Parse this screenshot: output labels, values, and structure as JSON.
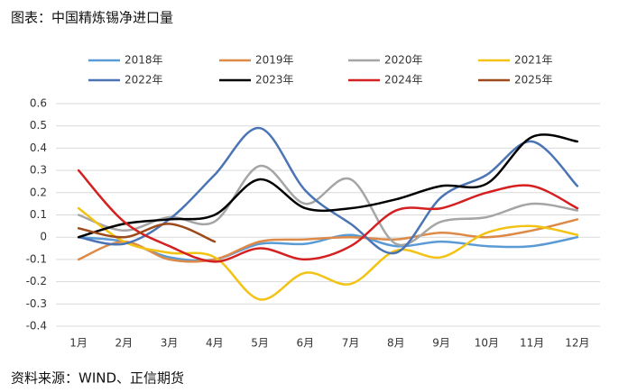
{
  "chart_data": {
    "type": "line",
    "title": "图表：中国精炼锡净进口量",
    "source": "资料来源：WIND、正信期货",
    "categories": [
      "1月",
      "2月",
      "3月",
      "4月",
      "5月",
      "6月",
      "7月",
      "8月",
      "9月",
      "10月",
      "11月",
      "12月"
    ],
    "ylim": [
      -0.4,
      0.6
    ],
    "yticks": [
      0.6,
      0.5,
      0.4,
      0.3,
      0.2,
      0.1,
      0,
      -0.1,
      -0.2,
      -0.3,
      -0.4
    ],
    "grid": true,
    "smooth": true,
    "legend": "top",
    "series": [
      {
        "name": "2018年",
        "color": "#5b9bd5",
        "values": [
          0.0,
          -0.02,
          -0.09,
          -0.1,
          -0.03,
          -0.03,
          0.01,
          -0.04,
          -0.02,
          -0.04,
          -0.04,
          0.0
        ]
      },
      {
        "name": "2019年",
        "color": "#dd8a48",
        "values": [
          -0.1,
          -0.02,
          -0.1,
          -0.1,
          -0.02,
          -0.01,
          0.0,
          -0.01,
          0.02,
          0.0,
          0.03,
          0.08
        ]
      },
      {
        "name": "2020年",
        "color": "#a5a5a5",
        "values": [
          0.1,
          0.03,
          0.09,
          0.07,
          0.32,
          0.15,
          0.26,
          -0.03,
          0.07,
          0.09,
          0.15,
          0.12
        ]
      },
      {
        "name": "2021年",
        "color": "#f2c314",
        "values": [
          0.13,
          -0.02,
          -0.07,
          -0.09,
          -0.28,
          -0.16,
          -0.21,
          -0.06,
          -0.09,
          0.02,
          0.05,
          0.01
        ]
      },
      {
        "name": "2022年",
        "color": "#4a74b4",
        "values": [
          0.0,
          -0.03,
          0.08,
          0.28,
          0.49,
          0.21,
          0.06,
          -0.07,
          0.18,
          0.28,
          0.43,
          0.23
        ]
      },
      {
        "name": "2023年",
        "color": "#000000",
        "values": [
          0.0,
          0.06,
          0.08,
          0.1,
          0.26,
          0.13,
          0.13,
          0.17,
          0.23,
          0.24,
          0.45,
          0.43
        ]
      },
      {
        "name": "2024年",
        "color": "#d42020",
        "values": [
          0.3,
          0.07,
          -0.04,
          -0.11,
          -0.05,
          -0.1,
          -0.04,
          0.12,
          0.13,
          0.2,
          0.23,
          0.13
        ]
      },
      {
        "name": "2025年",
        "color": "#9c4a1a",
        "values": [
          0.04,
          0.0,
          0.06,
          -0.02,
          null,
          null,
          null,
          null,
          null,
          null,
          null,
          null
        ]
      }
    ]
  }
}
